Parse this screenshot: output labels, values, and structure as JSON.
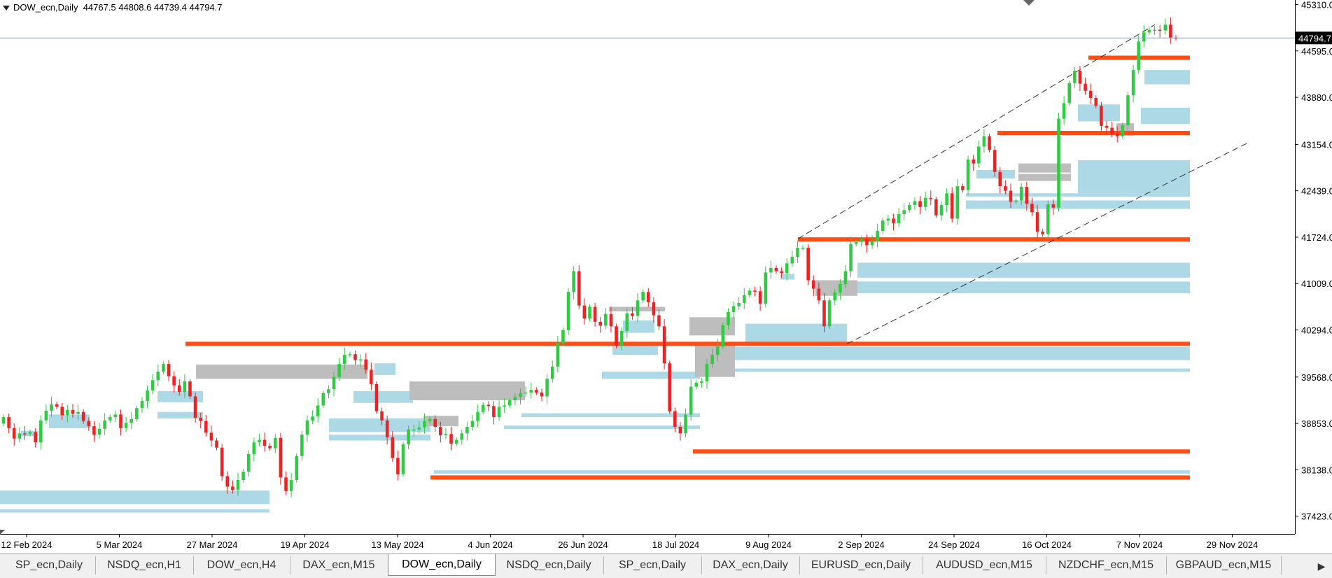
{
  "header": {
    "symbol": "DOW_ecn,Daily",
    "ohlc": "44767.5 44808.6 44739.4 44794.7"
  },
  "chart_data": {
    "type": "candlestick",
    "symbol": "DOW_ecn",
    "timeframe": "Daily",
    "ylim": [
      37150,
      45380
    ],
    "y_ticks": [
      45310.0,
      44595.0,
      43880.0,
      43154.0,
      42439.0,
      41724.0,
      41009.0,
      40294.0,
      39568.0,
      38853.0,
      38138.0,
      37423.0
    ],
    "y_tick_labels": [
      "45310.0",
      "44595.0",
      "43880.0",
      "43154.0",
      "42439.0",
      "41724.0",
      "41009.0",
      "40294.0",
      "39568.0",
      "38853.0",
      "38138.0",
      "37423.0"
    ],
    "x_tick_labels": [
      "12 Feb 2024",
      "5 Mar 2024",
      "27 Mar 2024",
      "19 Apr 2024",
      "13 May 2024",
      "4 Jun 2024",
      "26 Jun 2024",
      "18 Jul 2024",
      "9 Aug 2024",
      "2 Sep 2024",
      "24 Sep 2024",
      "16 Oct 2024",
      "7 Nov 2024",
      "29 Nov 2024"
    ],
    "current_price": 44794.7,
    "current_price_label": "44794.7",
    "series": [
      {
        "name": "closes",
        "values": [
          38950,
          38780,
          38620,
          38700,
          38690,
          38720,
          38560,
          38900,
          39050,
          39150,
          39110,
          38980,
          39060,
          39000,
          39030,
          38890,
          38810,
          38680,
          38770,
          38900,
          38950,
          38990,
          38780,
          38860,
          38920,
          39090,
          39200,
          39360,
          39520,
          39650,
          39770,
          39580,
          39440,
          39340,
          39500,
          39270,
          38940,
          38890,
          38710,
          38590,
          38480,
          38040,
          37880,
          37830,
          37980,
          38110,
          38380,
          38560,
          38600,
          38510,
          38470,
          38630,
          38020,
          37810,
          37980,
          38350,
          38680,
          38900,
          38960,
          39130,
          39320,
          39380,
          39570,
          39770,
          39910,
          39920,
          39830,
          39840,
          39680,
          39460,
          39040,
          38900,
          38640,
          38320,
          38070,
          38530,
          38760,
          38760,
          38790,
          38890,
          38920,
          38800,
          38670,
          38690,
          38540,
          38600,
          38700,
          38800,
          38890,
          39030,
          39140,
          39120,
          38950,
          39110,
          39130,
          39210,
          39260,
          39320,
          39330,
          39370,
          39330,
          39270,
          39540,
          39730,
          40090,
          40290,
          40880,
          41200,
          40670,
          40470,
          40650,
          40420,
          40360,
          40540,
          40350,
          40050,
          40280,
          40550,
          40510,
          40750,
          40880,
          40720,
          40520,
          40350,
          39780,
          39040,
          38800,
          38700,
          38990,
          39420,
          39480,
          39500,
          39770,
          39910,
          40040,
          40370,
          40570,
          40660,
          40710,
          40830,
          40900,
          40890,
          40700,
          41180,
          41250,
          41200,
          41170,
          41320,
          41420,
          41560,
          41560,
          41060,
          40930,
          40750,
          40350,
          40750,
          40870,
          41000,
          41200,
          41620,
          41650,
          41690,
          41600,
          41660,
          41820,
          41980,
          42010,
          41940,
          42080,
          42140,
          42220,
          42280,
          42190,
          42330,
          42310,
          42060,
          42220,
          42400,
          42010,
          42510,
          42450,
          42920,
          42860,
          43120,
          43280,
          43070,
          42730,
          42510,
          42440,
          42270,
          42290,
          42500,
          42240,
          42110,
          41810,
          41770,
          42230,
          42180,
          43550,
          43790,
          44100,
          44290,
          44090,
          43980,
          43870,
          43750,
          43440,
          43410,
          43320,
          43280,
          43450,
          43910,
          44300,
          44740,
          44880,
          44920,
          44920,
          44910,
          45000,
          44800,
          44794
        ]
      }
    ],
    "annotations": [
      {
        "type": "support-resistance",
        "label": "40080 level",
        "y": 40080
      },
      {
        "type": "support-resistance",
        "label": "41690 level",
        "y": 41690
      },
      {
        "type": "support-resistance",
        "label": "43330 level",
        "y": 43330
      },
      {
        "type": "support-resistance",
        "label": "44490 level",
        "y": 44490
      },
      {
        "type": "support-resistance",
        "label": "38420 level",
        "y": 38420
      },
      {
        "type": "support-resistance",
        "label": "38020 level",
        "y": 38020
      },
      {
        "type": "trend-channel",
        "label": "upper channel"
      },
      {
        "type": "trend-channel",
        "label": "lower channel"
      }
    ],
    "colors": {
      "bull": "#2ecc40",
      "bear": "#ee2222",
      "level": "#ff4d14",
      "zone_blue": "#add8e6",
      "zone_gray": "#bdbdbd",
      "price_line": "#8aa2b8"
    },
    "grid": false
  },
  "tabs": [
    {
      "label": "SP_ecn,Daily",
      "active": false
    },
    {
      "label": "NSDQ_ecn,H1",
      "active": false
    },
    {
      "label": "DOW_ecn,H4",
      "active": false
    },
    {
      "label": "DAX_ecn,M15",
      "active": false
    },
    {
      "label": "DOW_ecn,Daily",
      "active": true
    },
    {
      "label": "NSDQ_ecn,Daily",
      "active": false
    },
    {
      "label": "SP_ecn,Daily",
      "active": false
    },
    {
      "label": "DAX_ecn,Daily",
      "active": false
    },
    {
      "label": "EURUSD_ecn,Daily",
      "active": false
    },
    {
      "label": "AUDUSD_ecn,M15",
      "active": false
    },
    {
      "label": "NZDCHF_ecn,M15",
      "active": false
    },
    {
      "label": "GBPAUD_ecn,M15",
      "active": false
    }
  ],
  "tab_scroll_icon": "chevron-right-icon"
}
